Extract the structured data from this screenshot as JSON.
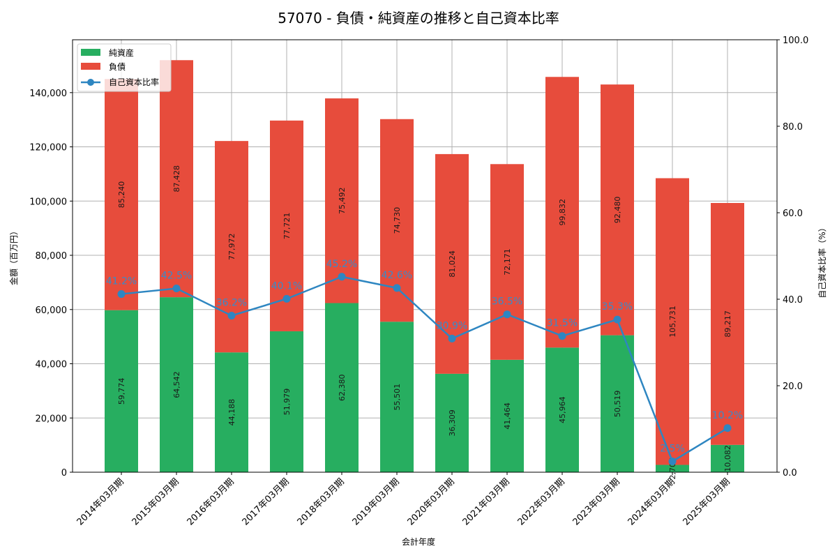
{
  "chart_data": {
    "type": "bar",
    "stacked": true,
    "title": "57070 - 負債・純資産の推移と自己資本比率",
    "xlabel": "会計年度",
    "ylabel": "金額（百万円）",
    "y2label": "自己資本比率（%）",
    "ylim": [
      0,
      159500
    ],
    "y2lim": [
      0,
      100
    ],
    "yticks": [
      "0",
      "20,000",
      "40,000",
      "60,000",
      "80,000",
      "100,000",
      "120,000",
      "140,000"
    ],
    "y2ticks": [
      "0.0",
      "20.0",
      "40.0",
      "60.0",
      "80.0",
      "100.0"
    ],
    "grid": true,
    "legend_position": "upper left",
    "categories": [
      "2014年03月期",
      "2015年03月期",
      "2016年03月期",
      "2017年03月期",
      "2018年03月期",
      "2019年03月期",
      "2020年03月期",
      "2021年03月期",
      "2022年03月期",
      "2023年03月期",
      "2024年03月期",
      "2025年03月期"
    ],
    "series": [
      {
        "name": "純資産",
        "type": "bar",
        "color": "#27ae60",
        "values": [
          59774,
          64542,
          44188,
          51979,
          62380,
          55501,
          36309,
          41464,
          45964,
          50519,
          2707,
          10082
        ],
        "labels": [
          "59,774",
          "64,542",
          "44,188",
          "51,979",
          "62,380",
          "55,501",
          "36,309",
          "41,464",
          "45,964",
          "50,519",
          "2,707",
          "10,082"
        ]
      },
      {
        "name": "負債",
        "type": "bar",
        "color": "#e74c3c",
        "values": [
          85240,
          87428,
          77972,
          77721,
          75492,
          74730,
          81024,
          72171,
          99832,
          92480,
          105731,
          89217
        ],
        "labels": [
          "85,240",
          "87,428",
          "77,972",
          "77,721",
          "75,492",
          "74,730",
          "81,024",
          "72,171",
          "99,832",
          "92,480",
          "105,731",
          "89,217"
        ]
      },
      {
        "name": "自己資本比率",
        "type": "line",
        "axis": "right",
        "color": "#2e86c1",
        "values": [
          41.2,
          42.5,
          36.2,
          40.1,
          45.2,
          42.6,
          30.9,
          36.5,
          31.5,
          35.3,
          2.5,
          10.2
        ],
        "labels": [
          "41.2%",
          "42.5%",
          "36.2%",
          "40.1%",
          "45.2%",
          "42.6%",
          "30.9%",
          "36.5%",
          "31.5%",
          "35.3%",
          "2.5%",
          "10.2%"
        ]
      }
    ]
  }
}
